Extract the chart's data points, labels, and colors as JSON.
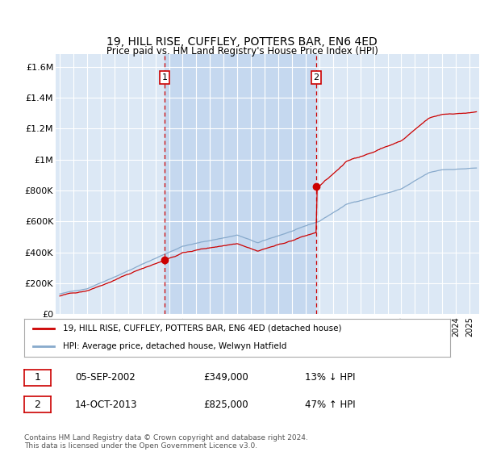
{
  "title": "19, HILL RISE, CUFFLEY, POTTERS BAR, EN6 4ED",
  "subtitle": "Price paid vs. HM Land Registry's House Price Index (HPI)",
  "ylabel_ticks": [
    "£0",
    "£200K",
    "£400K",
    "£600K",
    "£800K",
    "£1M",
    "£1.2M",
    "£1.4M",
    "£1.6M"
  ],
  "ytick_values": [
    0,
    200000,
    400000,
    600000,
    800000,
    1000000,
    1200000,
    1400000,
    1600000
  ],
  "ylim": [
    0,
    1680000
  ],
  "xlim_start": 1994.7,
  "xlim_end": 2025.7,
  "bg_color": "#dce8f5",
  "shade_color": "#c5d8ef",
  "grid_color": "#ffffff",
  "red_color": "#cc0000",
  "blue_color": "#88aacc",
  "marker1_x": 2002.67,
  "marker1_y": 349000,
  "marker2_x": 2013.78,
  "marker2_y": 825000,
  "legend_line1": "19, HILL RISE, CUFFLEY, POTTERS BAR, EN6 4ED (detached house)",
  "legend_line2": "HPI: Average price, detached house, Welwyn Hatfield",
  "annotation1_date": "05-SEP-2002",
  "annotation1_price": "£349,000",
  "annotation1_hpi": "13% ↓ HPI",
  "annotation2_date": "14-OCT-2013",
  "annotation2_price": "£825,000",
  "annotation2_hpi": "47% ↑ HPI",
  "footer": "Contains HM Land Registry data © Crown copyright and database right 2024.\nThis data is licensed under the Open Government Licence v3.0."
}
